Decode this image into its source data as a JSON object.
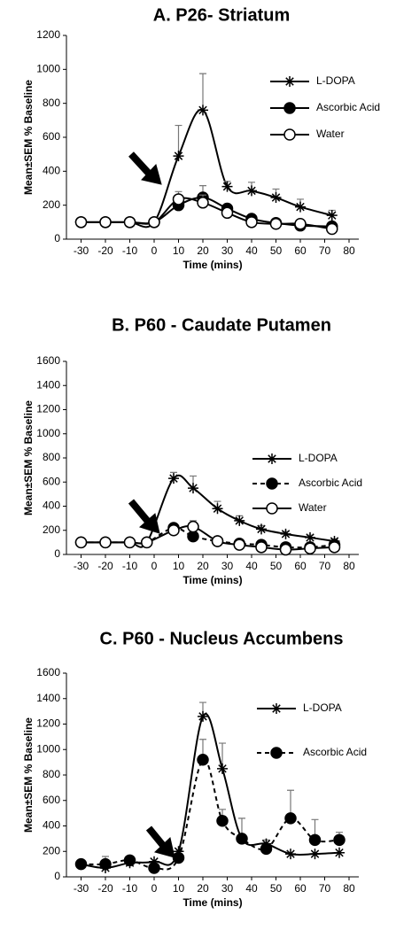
{
  "chart_data": [
    {
      "type": "line",
      "title": "A. P26- Striatum",
      "x_label": "Time (mins)",
      "y_label": "Mean±SEM % Baseline",
      "xlim": [
        -36,
        84
      ],
      "xticks": [
        -30,
        -20,
        -10,
        0,
        10,
        20,
        30,
        40,
        50,
        60,
        70,
        80
      ],
      "ylim": [
        0,
        1200
      ],
      "yticks": [
        0,
        200,
        400,
        600,
        800,
        1000,
        1200
      ],
      "series": [
        {
          "name": "L-DOPA",
          "marker": "star",
          "dashed": false,
          "color": "#000000",
          "x": [
            -30,
            -20,
            -10,
            0,
            10,
            20,
            30,
            40,
            50,
            60,
            73
          ],
          "values": [
            100,
            100,
            100,
            100,
            490,
            760,
            310,
            285,
            245,
            190,
            140
          ],
          "errors": [
            null,
            null,
            null,
            null,
            180,
            215,
            30,
            50,
            50,
            45,
            30
          ]
        },
        {
          "name": "Ascorbic Acid",
          "marker": "filled",
          "dashed": false,
          "color": "#000000",
          "x": [
            -30,
            -20,
            -10,
            0,
            10,
            20,
            30,
            40,
            50,
            60,
            73
          ],
          "values": [
            100,
            100,
            100,
            100,
            200,
            245,
            180,
            120,
            95,
            80,
            75
          ],
          "errors": [
            null,
            null,
            null,
            null,
            20,
            70,
            25,
            15,
            10,
            10,
            10
          ]
        },
        {
          "name": "Water",
          "marker": "open",
          "dashed": false,
          "color": "#000000",
          "x": [
            -30,
            -20,
            -10,
            0,
            10,
            20,
            30,
            40,
            50,
            60,
            73
          ],
          "values": [
            100,
            100,
            100,
            100,
            235,
            215,
            155,
            100,
            90,
            90,
            60
          ],
          "errors": [
            null,
            null,
            null,
            null,
            45,
            45,
            20,
            10,
            10,
            10,
            10
          ]
        }
      ]
    },
    {
      "type": "line",
      "title": "B. P60 - Caudate Putamen",
      "x_label": "Time (mins)",
      "y_label": "Mean±SEM % Baseline",
      "xlim": [
        -36,
        84
      ],
      "xticks": [
        -30,
        -20,
        -10,
        0,
        10,
        20,
        30,
        40,
        50,
        60,
        70,
        80
      ],
      "ylim": [
        0,
        1600
      ],
      "yticks": [
        0,
        200,
        400,
        600,
        800,
        1000,
        1200,
        1400,
        1600
      ],
      "series": [
        {
          "name": "L-DOPA",
          "marker": "star",
          "dashed": false,
          "color": "#000000",
          "x": [
            -30,
            -20,
            -10,
            -3,
            8,
            16,
            26,
            35,
            44,
            54,
            64,
            74
          ],
          "values": [
            100,
            100,
            100,
            100,
            630,
            550,
            380,
            280,
            210,
            170,
            140,
            110
          ],
          "errors": [
            null,
            null,
            null,
            null,
            50,
            100,
            60,
            40,
            30,
            20,
            20,
            20
          ]
        },
        {
          "name": "Ascorbic Acid",
          "marker": "filled",
          "dashed": true,
          "color": "#000000",
          "x": [
            -30,
            -20,
            -10,
            -3,
            8,
            16,
            26,
            35,
            44,
            54,
            64,
            74
          ],
          "values": [
            100,
            100,
            100,
            100,
            220,
            150,
            110,
            90,
            80,
            60,
            60,
            80
          ],
          "errors": [
            null,
            null,
            null,
            null,
            20,
            20,
            10,
            10,
            10,
            10,
            10,
            10
          ]
        },
        {
          "name": "Water",
          "marker": "open",
          "dashed": false,
          "color": "#000000",
          "x": [
            -30,
            -20,
            -10,
            -3,
            8,
            16,
            26,
            35,
            44,
            54,
            64,
            74
          ],
          "values": [
            100,
            100,
            100,
            100,
            200,
            230,
            110,
            80,
            60,
            40,
            50,
            60
          ],
          "errors": [
            null,
            null,
            null,
            null,
            30,
            50,
            10,
            10,
            10,
            10,
            10,
            10
          ]
        }
      ]
    },
    {
      "type": "line",
      "title": "C. P60 - Nucleus Accumbens",
      "x_label": "Time (mins)",
      "y_label": "Mean±SEM % Baseline",
      "xlim": [
        -36,
        84
      ],
      "xticks": [
        -30,
        -20,
        -10,
        0,
        10,
        20,
        30,
        40,
        50,
        60,
        70,
        80
      ],
      "ylim": [
        0,
        1600
      ],
      "yticks": [
        0,
        200,
        400,
        600,
        800,
        1000,
        1200,
        1400,
        1600
      ],
      "series": [
        {
          "name": "L-DOPA",
          "marker": "star",
          "dashed": false,
          "color": "#000000",
          "x": [
            -30,
            -20,
            -10,
            0,
            10,
            20,
            28,
            36,
            46,
            56,
            66,
            76
          ],
          "values": [
            100,
            70,
            110,
            120,
            200,
            1260,
            850,
            300,
            260,
            180,
            180,
            190
          ],
          "errors": [
            null,
            90,
            null,
            null,
            null,
            110,
            200,
            160,
            30,
            null,
            null,
            null
          ]
        },
        {
          "name": "Ascorbic Acid",
          "marker": "filled",
          "dashed": true,
          "color": "#000000",
          "x": [
            -30,
            -20,
            -10,
            0,
            10,
            20,
            28,
            36,
            46,
            56,
            66,
            76
          ],
          "values": [
            100,
            100,
            130,
            70,
            150,
            920,
            440,
            300,
            220,
            460,
            290,
            290
          ],
          "errors": [
            null,
            null,
            null,
            null,
            null,
            160,
            90,
            null,
            null,
            220,
            160,
            60
          ]
        }
      ]
    }
  ]
}
